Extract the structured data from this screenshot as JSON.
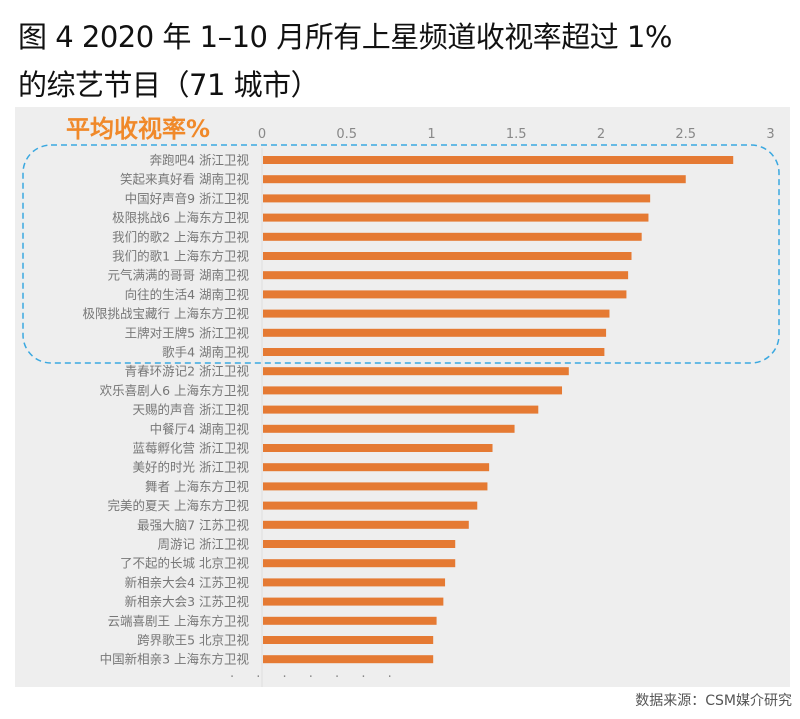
{
  "title": {
    "line1": "图 4 2020 年 1–10 月所有上星频道收视率超过 1%",
    "line2": "的综艺节目（71 城市）"
  },
  "source": "数据来源：CSM媒介研究",
  "colors": {
    "bar": "#e57a33",
    "highlight_border": "#3aa8e0",
    "panel": "#eeeeee",
    "metric_label": "#f0892a"
  },
  "chart_data": {
    "type": "bar",
    "orientation": "horizontal",
    "metric_label": "平均收视率%",
    "xlim": [
      0,
      3
    ],
    "x_ticks": [
      "0",
      "0.5",
      "1",
      "1.5",
      "2",
      "2.5",
      "3"
    ],
    "grid": false,
    "highlighted_top_n": 11,
    "continuation_marker": "· · · · · · ·",
    "categories": [
      "奔跑吧4  浙江卫视",
      "笑起来真好看  湖南卫视",
      "中国好声音9  浙江卫视",
      "极限挑战6  上海东方卫视",
      "我们的歌2 上海东方卫视",
      "我们的歌1  上海东方卫视",
      "元气满满的哥哥  湖南卫视",
      "向往的生活4  湖南卫视",
      "极限挑战宝藏行  上海东方卫视",
      "王牌对王牌5  浙江卫视",
      "歌手4  湖南卫视",
      "青春环游记2  浙江卫视",
      "欢乐喜剧人6  上海东方卫视",
      "天赐的声音  浙江卫视",
      "中餐厅4  湖南卫视",
      "蓝莓孵化营  浙江卫视",
      "美好的时光  浙江卫视",
      "舞者  上海东方卫视",
      "完美的夏天 上海东方卫视",
      "最强大脑7  江苏卫视",
      "周游记 浙江卫视",
      "了不起的长城 北京卫视",
      "新相亲大会4  江苏卫视",
      "新相亲大会3  江苏卫视",
      "云端喜剧王 上海东方卫视",
      "跨界歌王5  北京卫视",
      "中国新相亲3  上海东方卫视"
    ],
    "values": [
      2.78,
      2.5,
      2.29,
      2.28,
      2.24,
      2.18,
      2.16,
      2.15,
      2.05,
      2.03,
      2.02,
      1.81,
      1.77,
      1.63,
      1.49,
      1.36,
      1.34,
      1.33,
      1.27,
      1.22,
      1.14,
      1.14,
      1.08,
      1.07,
      1.03,
      1.01,
      1.01
    ]
  }
}
